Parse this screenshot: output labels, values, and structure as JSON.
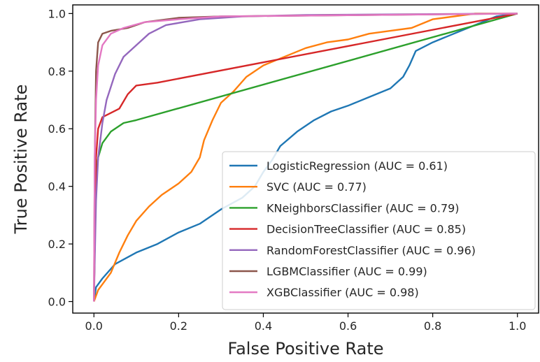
{
  "chart_data": {
    "type": "line",
    "title": "",
    "xlabel": "False Positive Rate",
    "ylabel": "True Positive Rate",
    "xlim": [
      -0.05,
      1.05
    ],
    "ylim": [
      -0.04,
      1.03
    ],
    "xticks": [
      "0.0",
      "0.2",
      "0.4",
      "0.6",
      "0.8",
      "1.0"
    ],
    "yticks": [
      "0.0",
      "0.2",
      "0.4",
      "0.6",
      "0.8",
      "1.0"
    ],
    "grid": false,
    "legend_position": "lower-right",
    "series": [
      {
        "name": "LogisticRegression (AUC = 0.61)",
        "color": "#1f77b4",
        "points": [
          [
            0,
            0
          ],
          [
            0.005,
            0.05
          ],
          [
            0.02,
            0.08
          ],
          [
            0.05,
            0.13
          ],
          [
            0.1,
            0.17
          ],
          [
            0.15,
            0.2
          ],
          [
            0.2,
            0.24
          ],
          [
            0.25,
            0.27
          ],
          [
            0.3,
            0.32
          ],
          [
            0.35,
            0.36
          ],
          [
            0.38,
            0.4
          ],
          [
            0.4,
            0.45
          ],
          [
            0.42,
            0.49
          ],
          [
            0.44,
            0.54
          ],
          [
            0.48,
            0.59
          ],
          [
            0.52,
            0.63
          ],
          [
            0.56,
            0.66
          ],
          [
            0.6,
            0.68
          ],
          [
            0.65,
            0.71
          ],
          [
            0.7,
            0.74
          ],
          [
            0.73,
            0.78
          ],
          [
            0.745,
            0.82
          ],
          [
            0.76,
            0.87
          ],
          [
            0.8,
            0.9
          ],
          [
            0.85,
            0.93
          ],
          [
            0.9,
            0.96
          ],
          [
            0.95,
            0.99
          ],
          [
            1,
            1
          ]
        ]
      },
      {
        "name": "SVC (AUC = 0.77)",
        "color": "#ff7f0e",
        "points": [
          [
            0,
            0
          ],
          [
            0.01,
            0.04
          ],
          [
            0.02,
            0.06
          ],
          [
            0.04,
            0.1
          ],
          [
            0.06,
            0.17
          ],
          [
            0.08,
            0.23
          ],
          [
            0.1,
            0.28
          ],
          [
            0.13,
            0.33
          ],
          [
            0.16,
            0.37
          ],
          [
            0.2,
            0.41
          ],
          [
            0.23,
            0.45
          ],
          [
            0.25,
            0.5
          ],
          [
            0.26,
            0.56
          ],
          [
            0.28,
            0.63
          ],
          [
            0.3,
            0.69
          ],
          [
            0.33,
            0.73
          ],
          [
            0.36,
            0.78
          ],
          [
            0.4,
            0.82
          ],
          [
            0.45,
            0.85
          ],
          [
            0.5,
            0.88
          ],
          [
            0.55,
            0.9
          ],
          [
            0.6,
            0.91
          ],
          [
            0.65,
            0.93
          ],
          [
            0.7,
            0.94
          ],
          [
            0.75,
            0.95
          ],
          [
            0.8,
            0.98
          ],
          [
            0.85,
            0.99
          ],
          [
            0.9,
            1
          ],
          [
            1,
            1
          ]
        ]
      },
      {
        "name": "KNeighborsClassifier (AUC = 0.79)",
        "color": "#2ca02c",
        "points": [
          [
            0,
            0
          ],
          [
            0.003,
            0.3
          ],
          [
            0.006,
            0.45
          ],
          [
            0.01,
            0.5
          ],
          [
            0.02,
            0.55
          ],
          [
            0.04,
            0.59
          ],
          [
            0.07,
            0.62
          ],
          [
            0.1,
            0.63
          ],
          [
            1,
            1
          ]
        ]
      },
      {
        "name": "DecisionTreeClassifier (AUC = 0.85)",
        "color": "#d62728",
        "points": [
          [
            0,
            0
          ],
          [
            0.005,
            0.5
          ],
          [
            0.01,
            0.6
          ],
          [
            0.02,
            0.64
          ],
          [
            0.06,
            0.67
          ],
          [
            0.08,
            0.72
          ],
          [
            0.1,
            0.75
          ],
          [
            0.15,
            0.76
          ],
          [
            1,
            1
          ]
        ]
      },
      {
        "name": "RandomForestClassifier (AUC = 0.96)",
        "color": "#9467bd",
        "points": [
          [
            0,
            0
          ],
          [
            0.002,
            0.15
          ],
          [
            0.005,
            0.35
          ],
          [
            0.01,
            0.5
          ],
          [
            0.02,
            0.62
          ],
          [
            0.03,
            0.7
          ],
          [
            0.05,
            0.79
          ],
          [
            0.07,
            0.85
          ],
          [
            0.1,
            0.89
          ],
          [
            0.13,
            0.93
          ],
          [
            0.17,
            0.96
          ],
          [
            0.25,
            0.98
          ],
          [
            0.35,
            0.99
          ],
          [
            0.5,
            0.995
          ],
          [
            1,
            1
          ]
        ]
      },
      {
        "name": "LGBMClassifier (AUC = 0.99)",
        "color": "#8c564b",
        "points": [
          [
            0,
            0
          ],
          [
            0.002,
            0.5
          ],
          [
            0.005,
            0.8
          ],
          [
            0.01,
            0.9
          ],
          [
            0.02,
            0.93
          ],
          [
            0.04,
            0.94
          ],
          [
            0.08,
            0.95
          ],
          [
            0.12,
            0.97
          ],
          [
            0.2,
            0.985
          ],
          [
            0.3,
            0.99
          ],
          [
            1,
            1
          ]
        ]
      },
      {
        "name": "XGBClassifier (AUC = 0.98)",
        "color": "#e377c2",
        "points": [
          [
            0,
            0
          ],
          [
            0.002,
            0.5
          ],
          [
            0.005,
            0.7
          ],
          [
            0.01,
            0.82
          ],
          [
            0.02,
            0.89
          ],
          [
            0.04,
            0.93
          ],
          [
            0.07,
            0.95
          ],
          [
            0.12,
            0.97
          ],
          [
            0.2,
            0.98
          ],
          [
            0.3,
            0.99
          ],
          [
            1,
            1
          ]
        ]
      }
    ]
  }
}
